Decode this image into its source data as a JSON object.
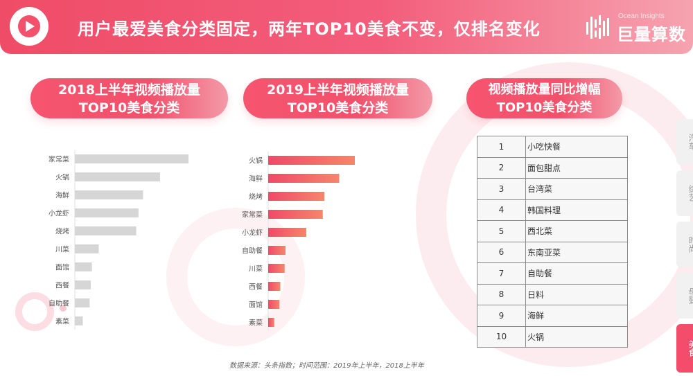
{
  "header": {
    "title": "用户最爱美食分类固定，两年TOP10美食不变，仅排名变化",
    "brand_en": "Ocean Insights",
    "brand_cn": "巨量算数"
  },
  "panels": {
    "p2018": {
      "line1": "2018上半年视频播放量",
      "line2": "TOP10美食分类"
    },
    "p2019": {
      "line1": "2019上半年视频播放量",
      "line2": "TOP10美食分类"
    },
    "pgrowth": {
      "line1": "视频播放量同比增幅",
      "line2": "TOP10美食分类"
    }
  },
  "chart_data": [
    {
      "type": "bar",
      "orientation": "horizontal",
      "title": "2018上半年视频播放量 TOP10美食分类",
      "categories": [
        "家常菜",
        "火锅",
        "海鲜",
        "小龙虾",
        "烧烤",
        "川菜",
        "面馆",
        "西餐",
        "自助餐",
        "素菜"
      ],
      "values": [
        100,
        75,
        60,
        56,
        54,
        21,
        15,
        14,
        13,
        7
      ],
      "xlim": [
        0,
        100
      ],
      "color": "#d6d6d6",
      "grid": false
    },
    {
      "type": "bar",
      "orientation": "horizontal",
      "title": "2019上半年视频播放量 TOP10美食分类",
      "categories": [
        "火锅",
        "海鲜",
        "烧烤",
        "家常菜",
        "小龙虾",
        "自助餐",
        "川菜",
        "西餐",
        "面馆",
        "素菜"
      ],
      "values": [
        100,
        82,
        65,
        63,
        44,
        20,
        19,
        14,
        13,
        7
      ],
      "xlim": [
        0,
        100
      ],
      "color": "#f2566e",
      "grid": false
    }
  ],
  "growth_table": {
    "rows": [
      {
        "rank": "1",
        "category": "小吃快餐"
      },
      {
        "rank": "2",
        "category": "面包甜点"
      },
      {
        "rank": "3",
        "category": "台湾菜"
      },
      {
        "rank": "4",
        "category": "韩国料理"
      },
      {
        "rank": "5",
        "category": "西北菜"
      },
      {
        "rank": "6",
        "category": "东南亚菜"
      },
      {
        "rank": "7",
        "category": "自助餐"
      },
      {
        "rank": "8",
        "category": "日料"
      },
      {
        "rank": "9",
        "category": "海鲜"
      },
      {
        "rank": "10",
        "category": "火锅"
      }
    ]
  },
  "side_tabs": [
    "汽车",
    "综艺",
    "时尚",
    "母婴",
    "美食"
  ],
  "active_tab": "美食",
  "source_note": "数据来源：头条指数；时间范围：2019年上半年，2018上半年",
  "colors": {
    "accent": "#f34d6b",
    "bar_2018": "#d6d6d6",
    "bar_2019": "#f2566e"
  }
}
